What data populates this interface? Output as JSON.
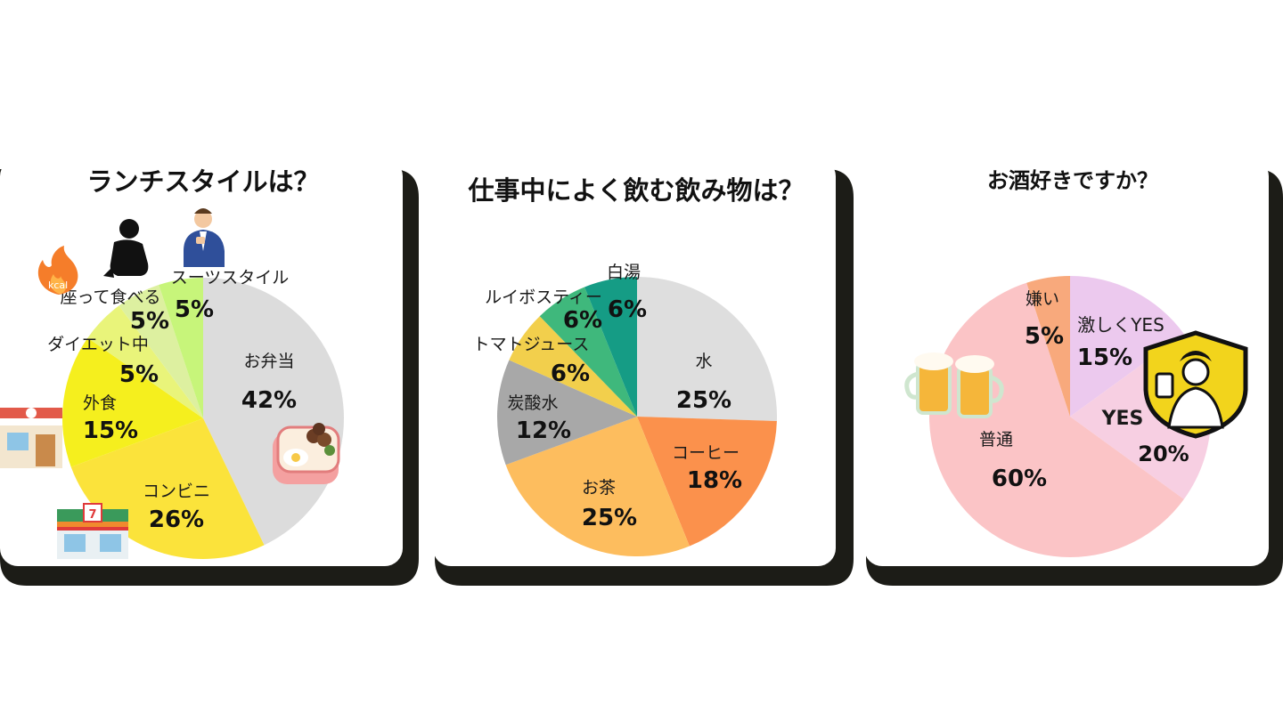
{
  "colors": {
    "card_shadow": "#1c1c17",
    "card_bg": "#ffffff"
  },
  "chart_data": [
    {
      "type": "pie",
      "title": "ランチスタイルは？",
      "unit": "%",
      "slices": [
        {
          "label": "お弁当",
          "value": 42,
          "display": "42%",
          "color": "#dcdcdc"
        },
        {
          "label": "コンビニ",
          "value": 26,
          "display": "26%",
          "color": "#fbe33b"
        },
        {
          "label": "外食",
          "value": 15,
          "display": "15%",
          "color": "#f5ef1e"
        },
        {
          "label": "ダイエット中",
          "value": 5,
          "display": "5%",
          "color": "#e9f47a"
        },
        {
          "label": "座って食べる",
          "value": 5,
          "display": "5%",
          "color": "#ddf0a0"
        },
        {
          "label": "スーツスタイル",
          "value": 5,
          "display": "5%",
          "color": "#c7f57a"
        }
      ],
      "icons": [
        "kcal-fire-icon",
        "sitting-person-icon",
        "suit-man-icon",
        "bento-box-icon",
        "restaurant-icon",
        "convenience-store-icon"
      ]
    },
    {
      "type": "pie",
      "title": "仕事中によく飲む飲み物は？",
      "unit": "%",
      "slices": [
        {
          "label": "水",
          "value": 25,
          "display": "25%",
          "color": "#dedede"
        },
        {
          "label": "コーヒー",
          "value": 18,
          "display": "18%",
          "color": "#fb914c"
        },
        {
          "label": "お茶",
          "value": 25,
          "display": "25%",
          "color": "#fdbd5e"
        },
        {
          "label": "炭酸水",
          "value": 12,
          "display": "12%",
          "color": "#a8a8a8"
        },
        {
          "label": "トマトジュース",
          "value": 6,
          "display": "6%",
          "color": "#f2cf4c"
        },
        {
          "label": "ルイボスティー",
          "value": 6,
          "display": "6%",
          "color": "#3fb87c"
        },
        {
          "label": "白湯",
          "value": 6,
          "display": "6%",
          "color": "#159c85"
        }
      ]
    },
    {
      "type": "pie",
      "title": "お酒好きですか？",
      "unit": "%",
      "slices": [
        {
          "label": "激しくYES",
          "value": 15,
          "display": "15%",
          "color": "#ecc9ee"
        },
        {
          "label": "YES",
          "value": 20,
          "display": "20%",
          "color": "#f7cfe2"
        },
        {
          "label": "普通",
          "value": 60,
          "display": "60%",
          "color": "#fbc4c6"
        },
        {
          "label": "嫌い",
          "value": 5,
          "display": "5%",
          "color": "#f8a97c"
        }
      ],
      "icons": [
        "beer-mugs-icon",
        "bavarian-man-emblem-icon"
      ]
    }
  ]
}
